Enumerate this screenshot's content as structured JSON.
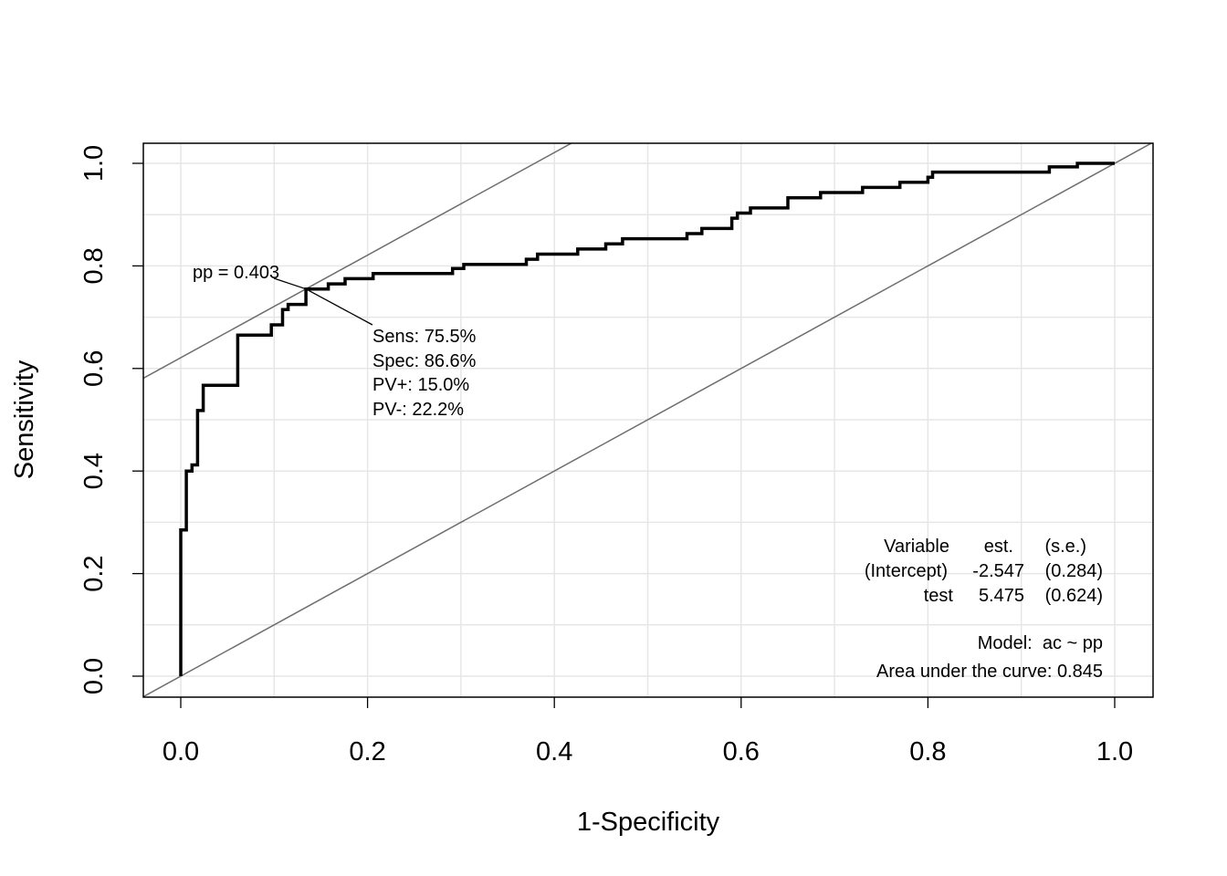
{
  "chart_data": {
    "type": "line",
    "xlabel": "1-Specificity",
    "ylabel": "Sensitivity",
    "xlim": [
      0,
      1
    ],
    "ylim": [
      0,
      1
    ],
    "x_ticks": [
      "0.0",
      "0.2",
      "0.4",
      "0.6",
      "0.8",
      "1.0"
    ],
    "y_ticks": [
      "0.0",
      "0.2",
      "0.4",
      "0.6",
      "0.8",
      "1.0"
    ],
    "grid": true,
    "series": [
      {
        "values": [
          [
            0,
            0
          ],
          [
            0,
            0.285
          ],
          [
            0.006,
            0.285
          ],
          [
            0.006,
            0.4
          ],
          [
            0.012,
            0.4
          ],
          [
            0.012,
            0.412
          ],
          [
            0.018,
            0.412
          ],
          [
            0.018,
            0.518
          ],
          [
            0.024,
            0.518
          ],
          [
            0.024,
            0.567
          ],
          [
            0.061,
            0.567
          ],
          [
            0.061,
            0.665
          ],
          [
            0.097,
            0.665
          ],
          [
            0.097,
            0.685
          ],
          [
            0.109,
            0.685
          ],
          [
            0.109,
            0.715
          ],
          [
            0.115,
            0.715
          ],
          [
            0.115,
            0.725
          ],
          [
            0.134,
            0.725
          ],
          [
            0.134,
            0.755
          ],
          [
            0.158,
            0.755
          ],
          [
            0.158,
            0.765
          ],
          [
            0.176,
            0.765
          ],
          [
            0.176,
            0.775
          ],
          [
            0.206,
            0.775
          ],
          [
            0.206,
            0.785
          ],
          [
            0.291,
            0.785
          ],
          [
            0.291,
            0.795
          ],
          [
            0.303,
            0.795
          ],
          [
            0.303,
            0.803
          ],
          [
            0.37,
            0.803
          ],
          [
            0.37,
            0.813
          ],
          [
            0.382,
            0.813
          ],
          [
            0.382,
            0.823
          ],
          [
            0.425,
            0.823
          ],
          [
            0.425,
            0.833
          ],
          [
            0.455,
            0.833
          ],
          [
            0.455,
            0.843
          ],
          [
            0.473,
            0.843
          ],
          [
            0.473,
            0.853
          ],
          [
            0.542,
            0.853
          ],
          [
            0.542,
            0.863
          ],
          [
            0.558,
            0.863
          ],
          [
            0.558,
            0.873
          ],
          [
            0.59,
            0.873
          ],
          [
            0.59,
            0.893
          ],
          [
            0.596,
            0.893
          ],
          [
            0.596,
            0.903
          ],
          [
            0.61,
            0.903
          ],
          [
            0.61,
            0.913
          ],
          [
            0.65,
            0.913
          ],
          [
            0.65,
            0.933
          ],
          [
            0.685,
            0.933
          ],
          [
            0.685,
            0.943
          ],
          [
            0.73,
            0.943
          ],
          [
            0.73,
            0.953
          ],
          [
            0.77,
            0.953
          ],
          [
            0.77,
            0.963
          ],
          [
            0.8,
            0.963
          ],
          [
            0.8,
            0.973
          ],
          [
            0.805,
            0.973
          ],
          [
            0.805,
            0.983
          ],
          [
            0.93,
            0.983
          ],
          [
            0.93,
            0.993
          ],
          [
            0.96,
            0.993
          ],
          [
            0.96,
            1.0
          ],
          [
            1.0,
            1.0
          ]
        ]
      }
    ],
    "reference_lines": [
      {
        "intercept": 0,
        "slope": 1
      },
      {
        "intercept": 0.621,
        "slope": 1
      }
    ],
    "cutpoint": {
      "x": 0.134,
      "y": 0.755,
      "label": "pp = 0.403",
      "stats": [
        "Sens: 75.5%",
        "Spec: 86.6%",
        "PV+: 15.0%",
        "PV-: 22.2%"
      ]
    },
    "coef_table": {
      "header": {
        "variable": "Variable",
        "est": "est.",
        "se": "(s.e.)"
      },
      "rows": [
        {
          "variable": "(Intercept)",
          "est": "-2.547",
          "se": "(0.284)"
        },
        {
          "variable": "test",
          "est": "5.475",
          "se": "(0.624)"
        }
      ]
    },
    "model": "Model:  ac ~ pp",
    "auc": "Area under the curve: 0.845"
  }
}
